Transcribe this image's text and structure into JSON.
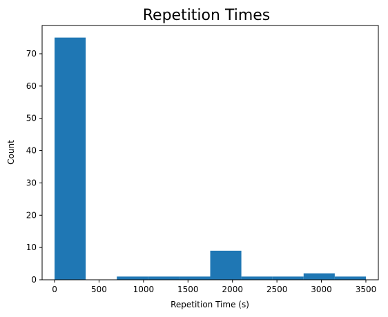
{
  "chart_data": {
    "type": "bar",
    "title": "Repetition Times",
    "xlabel": "Repetition Time (s)",
    "ylabel": "Count",
    "xlim": [
      -140,
      3640
    ],
    "ylim": [
      0,
      78.75
    ],
    "xticks": [
      0,
      500,
      1000,
      1500,
      2000,
      2500,
      3000,
      3500
    ],
    "yticks": [
      0,
      10,
      20,
      30,
      40,
      50,
      60,
      70
    ],
    "grid": false,
    "bar_color": "#1f77b4",
    "bins": [
      {
        "x0": 0,
        "x1": 350,
        "count": 75
      },
      {
        "x0": 350,
        "x1": 700,
        "count": 0
      },
      {
        "x0": 700,
        "x1": 1050,
        "count": 1
      },
      {
        "x0": 1050,
        "x1": 1400,
        "count": 1
      },
      {
        "x0": 1400,
        "x1": 1750,
        "count": 1
      },
      {
        "x0": 1750,
        "x1": 2100,
        "count": 9
      },
      {
        "x0": 2100,
        "x1": 2450,
        "count": 1
      },
      {
        "x0": 2450,
        "x1": 2800,
        "count": 1
      },
      {
        "x0": 2800,
        "x1": 3150,
        "count": 2
      },
      {
        "x0": 3150,
        "x1": 3500,
        "count": 1
      }
    ]
  }
}
